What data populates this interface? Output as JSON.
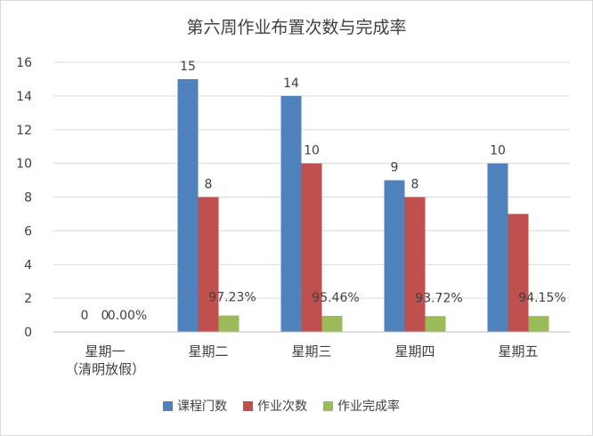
{
  "chart_data": {
    "type": "bar",
    "title": "第六周作业布置次数与完成率",
    "categories": [
      [
        "星期一",
        "（清明放假）"
      ],
      [
        "星期二"
      ],
      [
        "星期三"
      ],
      [
        "星期四"
      ],
      [
        "星期五"
      ]
    ],
    "ylim": [
      0,
      16
    ],
    "yticks": [
      0,
      2,
      4,
      6,
      8,
      10,
      12,
      14,
      16
    ],
    "grid": true,
    "legend_position": "bottom",
    "series": [
      {
        "name": "课程门数",
        "color": "#4f81bd",
        "values": [
          0,
          15,
          14,
          9,
          10
        ],
        "labels": [
          "0",
          "15",
          "14",
          "9",
          "10"
        ]
      },
      {
        "name": "作业次数",
        "color": "#c0504d",
        "values": [
          0,
          8,
          10,
          8,
          7
        ],
        "labels": [
          "0",
          "8",
          "10",
          "8",
          ""
        ]
      },
      {
        "name": "作业完成率",
        "color": "#9bbb59",
        "values": [
          0,
          0.9723,
          0.9546,
          0.9372,
          0.9415
        ],
        "labels": [
          "0.00%",
          "97.23%",
          "95.46%",
          "93.72%",
          "94.15%"
        ]
      }
    ]
  }
}
